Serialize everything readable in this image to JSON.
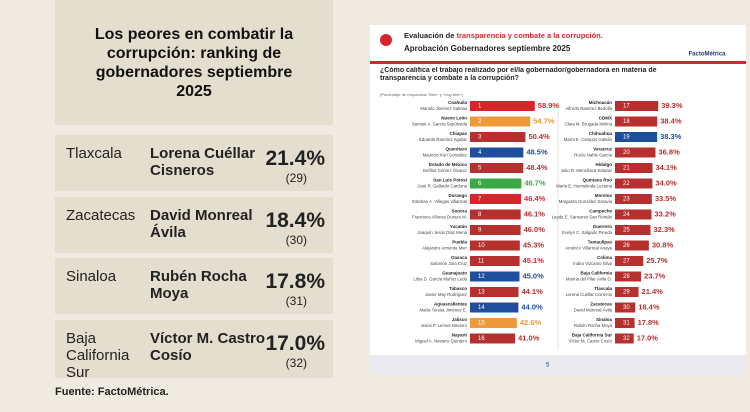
{
  "panel": {
    "title": "Los peores en combatir la corrupción: ranking de gobernadores septiembre 2025",
    "rows": [
      {
        "state": "Tlaxcala",
        "name": "Lorena Cuéllar Cisneros",
        "pct": "21.4%",
        "rank": "(29)"
      },
      {
        "state": "Zacatecas",
        "name": "David Monreal Ávila",
        "pct": "18.4%",
        "rank": "(30)"
      },
      {
        "state": "Sinaloa",
        "name": "Rubén Rocha Moya",
        "pct": "17.8%",
        "rank": "(31)"
      },
      {
        "state": "Baja California Sur",
        "name": "Víctor M. Castro Cosío",
        "pct": "17.0%",
        "rank": "(32)"
      }
    ],
    "source": "Fuente: FactoMétrica."
  },
  "infographic": {
    "title_prefix": "Evaluación de ",
    "title_highlight": "transparencia y combate a la corrupción.",
    "subtitle": "Aprobación Gobernadores septiembre 2025",
    "brand": "FactoMétrica",
    "question": "¿Cómo califica el trabajo realizado por el/la gobernador/gobernadora en materia de transparencia y combate a la corrupción?",
    "note": "(Porcentaje de respuestas \"Bien\" y \"muy bien\")",
    "page": "5",
    "rows": [
      {
        "rank": 1,
        "state": "Coahuila",
        "name": "Manolo Jiménez Salinas",
        "color": "#d7262b"
      },
      {
        "rank": 2,
        "state": "Nuevo León",
        "name": "Samuel A. García Sepúlveda",
        "color": "#ec9a3a"
      },
      {
        "rank": 3,
        "state": "Chiapas",
        "name": "Eduardo Ramírez Aguilar",
        "color": "#b5302f"
      },
      {
        "rank": 4,
        "state": "Querétaro",
        "name": "Mauricio Kuri González",
        "color": "#1f4e9c"
      },
      {
        "rank": 5,
        "state": "Estado de México",
        "name": "Delfina Gómez Álvarez",
        "color": "#b5302f"
      },
      {
        "rank": 6,
        "state": "San Luis Potosí",
        "name": "José R. Gallardo Cardona",
        "color": "#3aa845"
      },
      {
        "rank": 7,
        "state": "Durango",
        "name": "Esteban A. Villegas Villarreal",
        "color": "#d7262b"
      },
      {
        "rank": 8,
        "state": "Sonora",
        "name": "Francisco Alfonso Durazo M.",
        "color": "#b5302f"
      },
      {
        "rank": 9,
        "state": "Yucatán",
        "name": "Joaquín Jesús Díaz Mena",
        "color": "#b5302f"
      },
      {
        "rank": 10,
        "state": "Puebla",
        "name": "Alejandro Armenta Mier",
        "color": "#b5302f"
      },
      {
        "rank": 11,
        "state": "Oaxaca",
        "name": "Salomón Jara Cruz",
        "color": "#b5302f"
      },
      {
        "rank": 12,
        "state": "Guanajuato",
        "name": "Libia D. García Muñoz Ledo",
        "color": "#1f4e9c"
      },
      {
        "rank": 13,
        "state": "Tabasco",
        "name": "Javier May Rodríguez",
        "color": "#b5302f"
      },
      {
        "rank": 14,
        "state": "Aguascalientes",
        "name": "María Teresa Jiménez E.",
        "color": "#1f4e9c"
      },
      {
        "rank": 15,
        "state": "Jalisco",
        "name": "Jesús P. Lemus Navarro",
        "color": "#ec9a3a"
      },
      {
        "rank": 16,
        "state": "Nayarit",
        "name": "Miguel A. Navarro Quintero",
        "color": "#b5302f"
      },
      {
        "rank": 17,
        "state": "Michoacán",
        "name": "Alfredo Ramírez Bedolla",
        "color": "#b5302f"
      },
      {
        "rank": 18,
        "state": "CDMX",
        "name": "Clara M. Brugada Molina",
        "color": "#b5302f"
      },
      {
        "rank": 19,
        "state": "Chihuahua",
        "name": "María E. Campos Galván",
        "color": "#1f4e9c"
      },
      {
        "rank": 20,
        "state": "Veracruz",
        "name": "Rocío Nahle García",
        "color": "#b5302f"
      },
      {
        "rank": 21,
        "state": "Hidalgo",
        "name": "Julio R. Menchaca Salazar",
        "color": "#b5302f"
      },
      {
        "rank": 22,
        "state": "Quintana Roo",
        "name": "María E. Hermelinda Lezama",
        "color": "#b5302f"
      },
      {
        "rank": 23,
        "state": "Morelos",
        "name": "Margarita González Saravia",
        "color": "#b5302f"
      },
      {
        "rank": 24,
        "state": "Campeche",
        "name": "Layda E. Sansores San Román",
        "color": "#b5302f"
      },
      {
        "rank": 25,
        "state": "Guerrero",
        "name": "Evelyn C. Salgado Pineda",
        "color": "#b5302f"
      },
      {
        "rank": 26,
        "state": "Tamaulipas",
        "name": "Américo Villarreal Anaya",
        "color": "#b5302f"
      },
      {
        "rank": 27,
        "state": "Colima",
        "name": "Indira Vizcaíno Silva",
        "color": "#b5302f"
      },
      {
        "rank": 28,
        "state": "Baja California",
        "name": "Marina del Pilar Ávila O.",
        "color": "#b5302f"
      },
      {
        "rank": 29,
        "state": "Tlaxcala",
        "name": "Lorena Cuéllar Cisneros",
        "color": "#b5302f"
      },
      {
        "rank": 30,
        "state": "Zacatecas",
        "name": "David Monreal Ávila",
        "color": "#b5302f"
      },
      {
        "rank": 31,
        "state": "Sinaloa",
        "name": "Rubén Rocha Moya",
        "color": "#b5302f"
      },
      {
        "rank": 32,
        "state": "Baja California Sur",
        "name": "Víctor M. Castro Cosío",
        "color": "#b5302f"
      }
    ],
    "values": [
      58.9,
      54.7,
      50.4,
      48.5,
      48.4,
      46.7,
      46.4,
      46.1,
      46.0,
      45.3,
      45.1,
      45.0,
      44.1,
      44.0,
      42.6,
      41.0,
      39.3,
      38.4,
      38.3,
      36.8,
      34.1,
      34.0,
      33.5,
      33.2,
      32.3,
      30.8,
      25.7,
      23.7,
      21.4,
      18.4,
      17.8,
      17.0
    ],
    "value_labels": [
      "58.9%",
      "54.7%",
      "50.4%",
      "48.5%",
      "48.4%",
      "46.7%",
      "46.4%",
      "46.1%",
      "46.0%",
      "45.3%",
      "45.1%",
      "45.0%",
      "44.1%",
      "44.0%",
      "42.6%",
      "41.0%",
      "39.3%",
      "38.4%",
      "38.3%",
      "36.8%",
      "34.1%",
      "34.0%",
      "33.5%",
      "33.2%",
      "32.3%",
      "30.8%",
      "25.7%",
      "23.7%",
      "21.4%",
      "18.4%",
      "17.8%",
      "17.0%"
    ]
  }
}
